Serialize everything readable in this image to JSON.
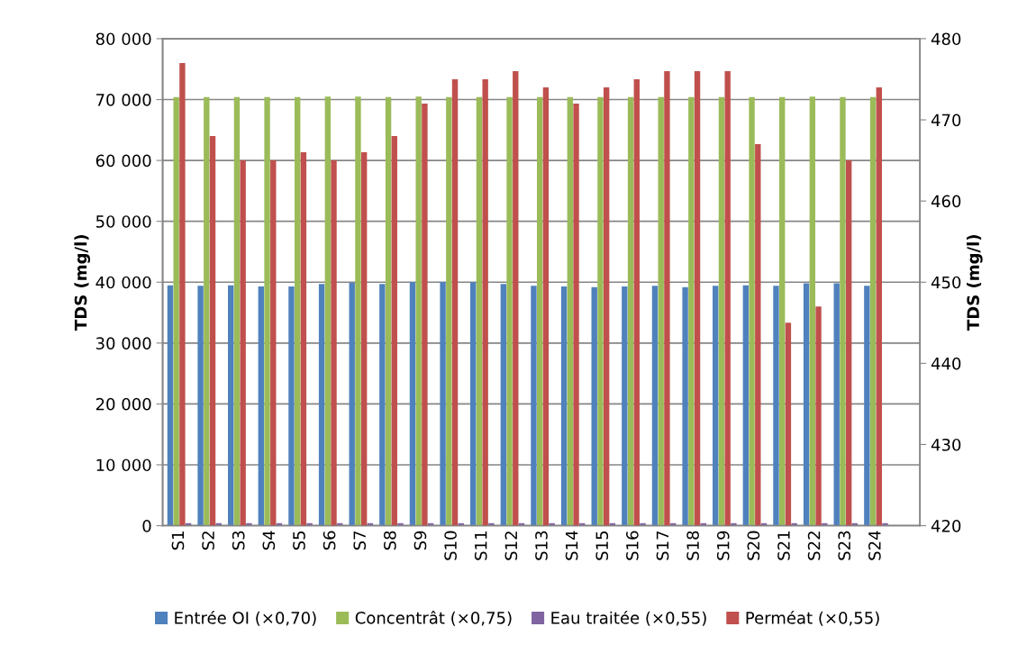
{
  "chart_data": {
    "type": "bar",
    "ylabel": "TDS (mg/l)",
    "y2label": "TDS (mg/l)",
    "categories": [
      "S1",
      "S2",
      "S3",
      "S4",
      "S5",
      "S6",
      "S7",
      "S8",
      "S9",
      "S10",
      "S11",
      "S12",
      "S13",
      "S14",
      "S15",
      "S16",
      "S17",
      "S18",
      "S19",
      "S20",
      "S21",
      "S22",
      "S23",
      "S24"
    ],
    "series": [
      {
        "name": "Entrée OI (×0,70)",
        "color": "#4f81bd",
        "values": [
          39500,
          39400,
          39500,
          39300,
          39300,
          39700,
          39900,
          39700,
          40000,
          40000,
          40000,
          39700,
          39400,
          39300,
          39200,
          39300,
          39400,
          39200,
          39400,
          39500,
          39400,
          39800,
          39800,
          39400
        ]
      },
      {
        "name": "Concentrât (×0,75)",
        "color": "#9bbb59",
        "values": [
          70400,
          70400,
          70400,
          70400,
          70400,
          70500,
          70500,
          70400,
          70500,
          70400,
          70400,
          70400,
          70400,
          70400,
          70400,
          70400,
          70400,
          70400,
          70400,
          70400,
          70400,
          70500,
          70400,
          70400
        ]
      },
      {
        "name": "Eau traitée (×0,55)",
        "color": "#8064a2",
        "values": [
          400,
          400,
          400,
          400,
          400,
          400,
          400,
          400,
          400,
          400,
          400,
          400,
          400,
          400,
          400,
          400,
          400,
          400,
          400,
          400,
          400,
          400,
          400,
          400
        ]
      },
      {
        "name": "Perméat (×0,55)",
        "color": "#c0504d",
        "axis": "y2",
        "values": [
          477,
          468,
          465,
          465,
          466,
          465,
          466,
          468,
          472,
          475,
          475,
          476,
          474,
          472,
          474,
          475,
          476,
          476,
          476,
          467,
          445,
          447,
          465,
          474
        ]
      }
    ],
    "ylim": [
      0,
      80000
    ],
    "yticks": [
      0,
      {
        "value": 10000,
        "label": "10 000"
      },
      {
        "value": 20000,
        "label": "20 000"
      },
      {
        "value": 30000,
        "label": "30 000"
      },
      {
        "value": 40000,
        "label": "40 000"
      },
      {
        "value": 50000,
        "label": "50 000"
      },
      {
        "value": 60000,
        "label": "60 000"
      },
      {
        "value": 70000,
        "label": "70 000"
      },
      {
        "value": 80000,
        "label": "80 000"
      }
    ],
    "y2lim": [
      420,
      480
    ],
    "y2ticks": [
      420,
      430,
      440,
      450,
      460,
      470,
      480
    ],
    "grid": "y",
    "legend": "bottom"
  }
}
